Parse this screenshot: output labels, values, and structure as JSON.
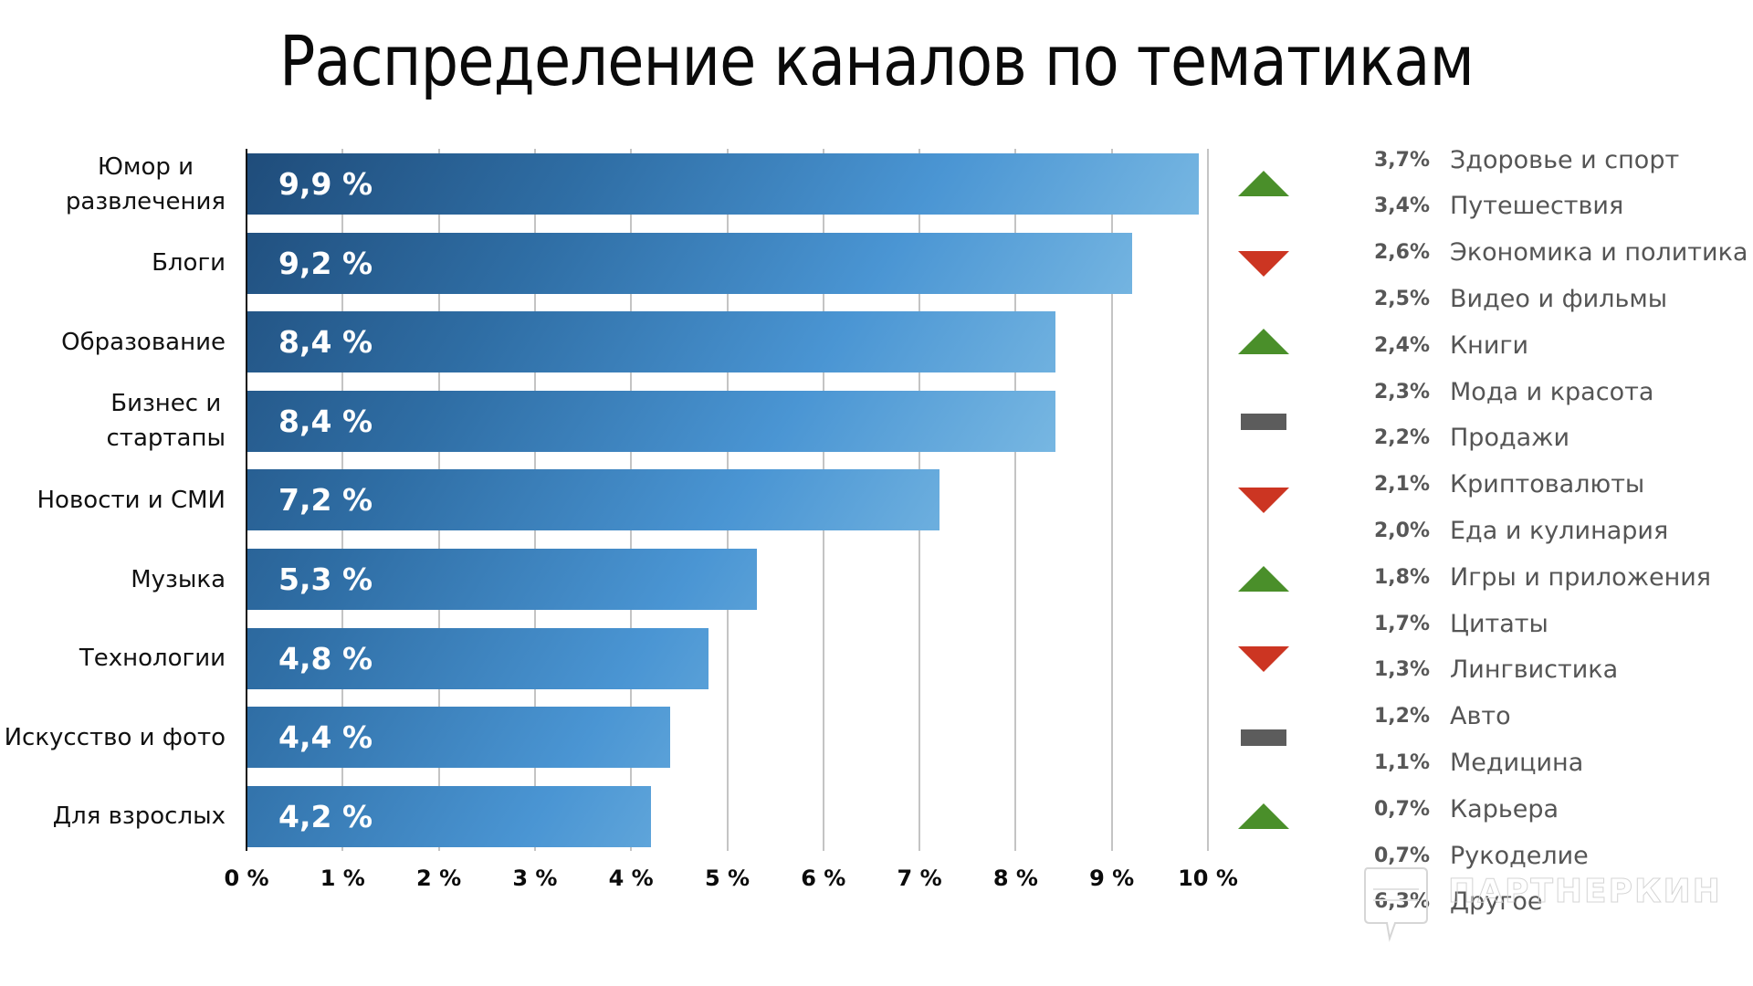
{
  "title": "Распределение каналов по тематикам",
  "colors": {
    "up": "#4a8f2a",
    "down": "#cc3522",
    "flat": "#5c5c5c",
    "bar_gradient_start": "#1f4c7a",
    "bar_gradient_end": "#b4dcef",
    "gridline": "#c4c4c4"
  },
  "chart_data": {
    "type": "bar",
    "orientation": "horizontal",
    "title": "Распределение каналов по тематикам",
    "xlabel": "",
    "ylabel": "",
    "xlim": [
      0,
      10
    ],
    "x_ticks": [
      "0 %",
      "1 %",
      "2 %",
      "3 %",
      "4 %",
      "5 %",
      "6 %",
      "7 %",
      "8 %",
      "9 %",
      "10 %"
    ],
    "grid": true,
    "categories": [
      "Юмор и развлечения",
      "Блоги",
      "Образование",
      "Бизнес и стартапы",
      "Новости и СМИ",
      "Музыка",
      "Технологии",
      "Искусство и фото",
      "Для взрослых"
    ],
    "values": [
      9.9,
      9.2,
      8.4,
      8.4,
      7.2,
      5.3,
      4.8,
      4.4,
      4.2
    ],
    "value_labels": [
      "9,9 %",
      "9,2 %",
      "8,4 %",
      "8,4 %",
      "7,2 %",
      "5,3 %",
      "4,8 %",
      "4,4 %",
      "4,2 %"
    ],
    "trend": [
      "up",
      "down",
      "up",
      "flat",
      "down",
      "up",
      "down",
      "flat",
      "up"
    ],
    "other_categories": [
      {
        "label": "Здоровье и спорт",
        "value": 3.7,
        "display": "3,7%"
      },
      {
        "label": "Путешествия",
        "value": 3.4,
        "display": "3,4%"
      },
      {
        "label": "Экономика и политика",
        "value": 2.6,
        "display": "2,6%"
      },
      {
        "label": "Видео и фильмы",
        "value": 2.5,
        "display": "2,5%"
      },
      {
        "label": "Книги",
        "value": 2.4,
        "display": "2,4%"
      },
      {
        "label": "Мода и красота",
        "value": 2.3,
        "display": "2,3%"
      },
      {
        "label": "Продажи",
        "value": 2.2,
        "display": "2,2%"
      },
      {
        "label": "Криптовалюты",
        "value": 2.1,
        "display": "2,1%"
      },
      {
        "label": "Еда и кулинария",
        "value": 2.0,
        "display": "2,0%"
      },
      {
        "label": "Игры и приложения",
        "value": 1.8,
        "display": "1,8%"
      },
      {
        "label": "Цитаты",
        "value": 1.7,
        "display": "1,7%"
      },
      {
        "label": "Лингвистика",
        "value": 1.3,
        "display": "1,3%"
      },
      {
        "label": "Авто",
        "value": 1.2,
        "display": "1,2%"
      },
      {
        "label": "Медицина",
        "value": 1.1,
        "display": "1,1%"
      },
      {
        "label": "Карьера",
        "value": 0.7,
        "display": "0,7%"
      },
      {
        "label": "Рукоделие",
        "value": 0.7,
        "display": "0,7%"
      },
      {
        "label": "Другое",
        "value": 6.3,
        "display": "6,3%"
      }
    ]
  },
  "bars": [
    {
      "label": "Юмор и\nразвлечения",
      "value": 9.9,
      "display": "9,9 %",
      "trend": "up"
    },
    {
      "label": "Блоги",
      "value": 9.2,
      "display": "9,2 %",
      "trend": "down"
    },
    {
      "label": "Образование",
      "value": 8.4,
      "display": "8,4 %",
      "trend": "up"
    },
    {
      "label": "Бизнес и\nстартапы",
      "value": 8.4,
      "display": "8,4 %",
      "trend": "flat"
    },
    {
      "label": "Новости и СМИ",
      "value": 7.2,
      "display": "7,2 %",
      "trend": "down"
    },
    {
      "label": "Музыка",
      "value": 5.3,
      "display": "5,3 %",
      "trend": "up"
    },
    {
      "label": "Технологии",
      "value": 4.8,
      "display": "4,8 %",
      "trend": "down"
    },
    {
      "label": "Искусство и фото",
      "value": 4.4,
      "display": "4,4 %",
      "trend": "flat"
    },
    {
      "label": "Для взрослых",
      "value": 4.2,
      "display": "4,2 %",
      "trend": "up"
    }
  ],
  "x_axis": {
    "ticks": [
      "0 %",
      "1 %",
      "2 %",
      "3 %",
      "4 %",
      "5 %",
      "6 %",
      "7 %",
      "8 %",
      "9 %",
      "10 %"
    ]
  },
  "side_list": [
    {
      "pct": "3,7%",
      "label": "Здоровье и спорт"
    },
    {
      "pct": "3,4%",
      "label": "Путешествия"
    },
    {
      "pct": "2,6%",
      "label": "Экономика и политика"
    },
    {
      "pct": "2,5%",
      "label": "Видео и фильмы"
    },
    {
      "pct": "2,4%",
      "label": "Книги"
    },
    {
      "pct": "2,3%",
      "label": "Мода и красота"
    },
    {
      "pct": "2,2%",
      "label": "Продажи"
    },
    {
      "pct": "2,1%",
      "label": "Криптовалюты"
    },
    {
      "pct": "2,0%",
      "label": "Еда и кулинария"
    },
    {
      "pct": "1,8%",
      "label": "Игры и приложения"
    },
    {
      "pct": "1,7%",
      "label": "Цитаты"
    },
    {
      "pct": "1,3%",
      "label": "Лингвистика"
    },
    {
      "pct": "1,2%",
      "label": "Авто"
    },
    {
      "pct": "1,1%",
      "label": "Медицина"
    },
    {
      "pct": "0,7%",
      "label": "Карьера"
    },
    {
      "pct": "0,7%",
      "label": "Рукоделие"
    },
    {
      "pct": "6,3%",
      "label": "Другое"
    }
  ],
  "watermark": {
    "text": "ПАРТНЕРКИН",
    "icon": "speech-bubble-logo-icon"
  }
}
